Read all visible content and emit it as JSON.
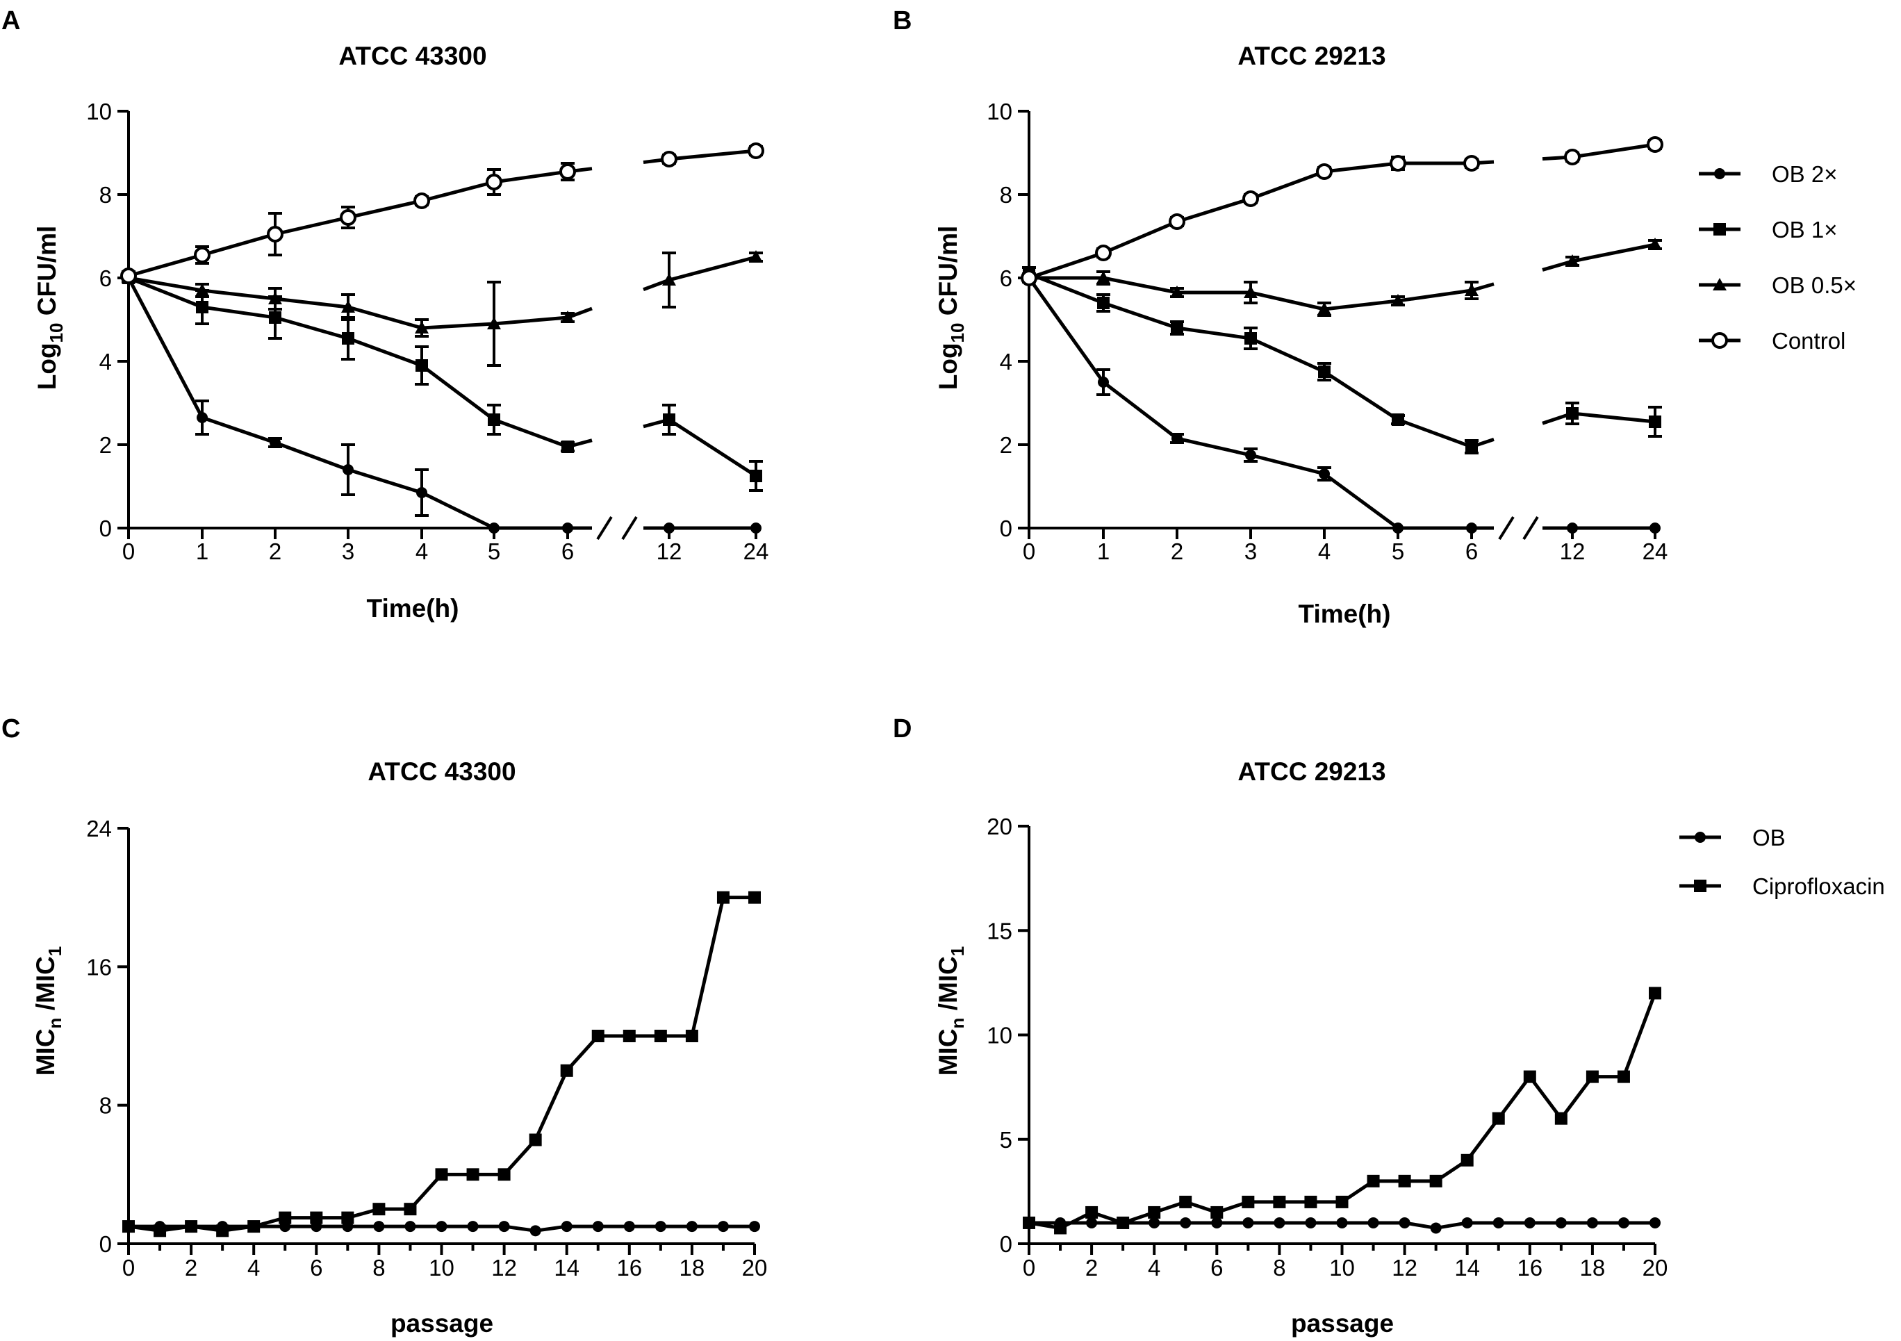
{
  "chart_data": [
    {
      "panel": "A",
      "type": "line",
      "title": "ATCC 43300",
      "xlabel": "Time(h)",
      "ylabel": "Log10 CFU/ml",
      "ylabel_parts": {
        "pre": "Log",
        "sub": "10",
        "post": " CFU/ml"
      },
      "x_categories": [
        "0",
        "1",
        "2",
        "3",
        "4",
        "5",
        "6",
        "12",
        "24"
      ],
      "x_break_after": "6",
      "ylim": [
        0,
        10
      ],
      "yticks": [
        "0",
        "2",
        "4",
        "6",
        "8",
        "10"
      ],
      "legend": "right",
      "series": [
        {
          "name": "OB 2×",
          "marker": "circle",
          "values": [
            6.0,
            2.65,
            2.05,
            1.4,
            0.85,
            0.0,
            0.0,
            0.0,
            0.0
          ],
          "errors": [
            0.1,
            0.4,
            0.1,
            0.6,
            0.55,
            0,
            0,
            0,
            0
          ]
        },
        {
          "name": "OB 1×",
          "marker": "square",
          "values": [
            6.0,
            5.3,
            5.05,
            4.55,
            3.9,
            2.6,
            1.95,
            2.6,
            1.25
          ],
          "errors": [
            0.1,
            0.4,
            0.5,
            0.5,
            0.45,
            0.35,
            0.1,
            0.35,
            0.35
          ]
        },
        {
          "name": "OB 0.5×",
          "marker": "triangle",
          "values": [
            6.0,
            5.7,
            5.5,
            5.3,
            4.8,
            4.9,
            5.05,
            5.95,
            6.5
          ],
          "errors": [
            0.1,
            0.15,
            0.25,
            0.3,
            0.2,
            1.0,
            0.1,
            0.65,
            0.1
          ]
        },
        {
          "name": "Control",
          "marker": "open-circle",
          "values": [
            6.05,
            6.55,
            7.05,
            7.45,
            7.85,
            8.3,
            8.55,
            8.85,
            9.05
          ],
          "errors": [
            0.1,
            0.2,
            0.5,
            0.25,
            0.1,
            0.3,
            0.2,
            0.1,
            0.1
          ]
        }
      ]
    },
    {
      "panel": "B",
      "type": "line",
      "title": "ATCC 29213",
      "xlabel": "Time(h)",
      "ylabel": "Log10 CFU/ml",
      "ylabel_parts": {
        "pre": "Log",
        "sub": "10",
        "post": " CFU/ml"
      },
      "x_categories": [
        "0",
        "1",
        "2",
        "3",
        "4",
        "5",
        "6",
        "12",
        "24"
      ],
      "x_break_after": "6",
      "ylim": [
        0,
        10
      ],
      "yticks": [
        "0",
        "2",
        "4",
        "6",
        "8",
        "10"
      ],
      "legend": "right",
      "series": [
        {
          "name": "OB 2×",
          "marker": "circle",
          "values": [
            6.0,
            3.5,
            2.15,
            1.75,
            1.3,
            0.0,
            0.0,
            0.0,
            0.0
          ],
          "errors": [
            0.1,
            0.3,
            0.1,
            0.15,
            0.15,
            0,
            0,
            0,
            0
          ]
        },
        {
          "name": "OB 1×",
          "marker": "square",
          "values": [
            6.1,
            5.4,
            4.8,
            4.55,
            3.75,
            2.6,
            1.95,
            2.75,
            2.55
          ],
          "errors": [
            0.15,
            0.2,
            0.15,
            0.25,
            0.2,
            0.1,
            0.15,
            0.25,
            0.35
          ]
        },
        {
          "name": "OB 0.5×",
          "marker": "triangle",
          "values": [
            6.0,
            6.0,
            5.65,
            5.65,
            5.25,
            5.45,
            5.7,
            6.4,
            6.8
          ],
          "errors": [
            0.1,
            0.15,
            0.1,
            0.25,
            0.15,
            0.1,
            0.2,
            0.1,
            0.1
          ]
        },
        {
          "name": "Control",
          "marker": "open-circle",
          "values": [
            6.0,
            6.6,
            7.35,
            7.9,
            8.55,
            8.75,
            8.75,
            8.9,
            9.2
          ],
          "errors": [
            0.1,
            0.1,
            0.1,
            0.1,
            0.1,
            0.15,
            0.1,
            0.1,
            0.1
          ]
        }
      ]
    },
    {
      "panel": "C",
      "type": "line",
      "title": "ATCC 43300",
      "xlabel": "passage",
      "ylabel": "MICn /MIC1",
      "ylabel_parts": {
        "a": "MIC",
        "sub1": "n",
        "b": " /MIC",
        "sub2": "1"
      },
      "x": [
        0,
        1,
        2,
        3,
        4,
        5,
        6,
        7,
        8,
        9,
        10,
        11,
        12,
        13,
        14,
        15,
        16,
        17,
        18,
        19,
        20
      ],
      "xlim": [
        0,
        20
      ],
      "xticks": [
        "0",
        "2",
        "4",
        "6",
        "8",
        "10",
        "12",
        "14",
        "16",
        "18",
        "20"
      ],
      "ylim": [
        0,
        24
      ],
      "yticks": [
        "0",
        "8",
        "16",
        "24"
      ],
      "legend": "right",
      "series": [
        {
          "name": "OB",
          "marker": "circle",
          "values": [
            1,
            1,
            1,
            1,
            1,
            1,
            1,
            1,
            1,
            1,
            1,
            1,
            1,
            0.75,
            1,
            1,
            1,
            1,
            1,
            1,
            1
          ]
        },
        {
          "name": "Ciprofloxacin",
          "marker": "square",
          "values": [
            1,
            0.75,
            1,
            0.75,
            1,
            1.5,
            1.5,
            1.5,
            2,
            2,
            4,
            4,
            4,
            6,
            10,
            12,
            12,
            12,
            12,
            20,
            20
          ]
        }
      ]
    },
    {
      "panel": "D",
      "type": "line",
      "title": "ATCC 29213",
      "xlabel": "passage",
      "ylabel": "MICn /MIC1",
      "ylabel_parts": {
        "a": "MIC",
        "sub1": "n",
        "b": " /MIC",
        "sub2": "1"
      },
      "x": [
        0,
        1,
        2,
        3,
        4,
        5,
        6,
        7,
        8,
        9,
        10,
        11,
        12,
        13,
        14,
        15,
        16,
        17,
        18,
        19,
        20
      ],
      "xlim": [
        0,
        20
      ],
      "xticks": [
        "0",
        "2",
        "4",
        "6",
        "8",
        "10",
        "12",
        "14",
        "16",
        "18",
        "20"
      ],
      "ylim": [
        0,
        20
      ],
      "yticks": [
        "0",
        "5",
        "10",
        "15",
        "20"
      ],
      "legend": "right",
      "series": [
        {
          "name": "OB",
          "marker": "circle",
          "values": [
            1,
            1,
            1,
            1,
            1,
            1,
            1,
            1,
            1,
            1,
            1,
            1,
            1,
            0.75,
            1,
            1,
            1,
            1,
            1,
            1,
            1
          ]
        },
        {
          "name": "Ciprofloxacin",
          "marker": "square",
          "values": [
            1,
            0.75,
            1.5,
            1,
            1.5,
            2,
            1.5,
            2,
            2,
            2,
            2,
            3,
            3,
            3,
            4,
            6,
            8,
            6,
            8,
            8,
            12
          ]
        }
      ]
    }
  ]
}
